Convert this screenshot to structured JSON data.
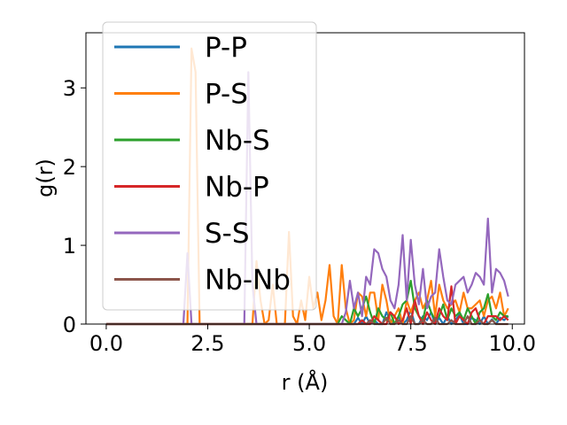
{
  "chart_data": {
    "type": "line",
    "xlabel": "r (Å)",
    "ylabel": "g(r)",
    "xlim": [
      -0.5,
      10.3
    ],
    "ylim": [
      0,
      3.7
    ],
    "xticks": [
      "0.0",
      "2.5",
      "5.0",
      "7.5",
      "10.0"
    ],
    "yticks": [
      "0",
      "1",
      "2",
      "3"
    ],
    "legend": "top-left",
    "grid": false,
    "x": [
      0.0,
      0.1,
      0.2,
      0.3,
      0.4,
      0.5,
      0.6,
      0.7,
      0.8,
      0.9,
      1.0,
      1.1,
      1.2,
      1.3,
      1.4,
      1.5,
      1.6,
      1.7,
      1.8,
      1.9,
      2.0,
      2.1,
      2.2,
      2.3,
      2.4,
      2.5,
      2.6,
      2.7,
      2.8,
      2.9,
      3.0,
      3.1,
      3.2,
      3.3,
      3.4,
      3.5,
      3.6,
      3.7,
      3.8,
      3.9,
      4.0,
      4.1,
      4.2,
      4.3,
      4.4,
      4.5,
      4.6,
      4.7,
      4.8,
      4.9,
      5.0,
      5.1,
      5.2,
      5.3,
      5.4,
      5.5,
      5.6,
      5.7,
      5.8,
      5.9,
      6.0,
      6.1,
      6.2,
      6.3,
      6.4,
      6.5,
      6.6,
      6.7,
      6.8,
      6.9,
      7.0,
      7.1,
      7.2,
      7.3,
      7.4,
      7.5,
      7.6,
      7.7,
      7.8,
      7.9,
      8.0,
      8.1,
      8.2,
      8.3,
      8.4,
      8.5,
      8.6,
      8.7,
      8.8,
      8.9,
      9.0,
      9.1,
      9.2,
      9.3,
      9.4,
      9.5,
      9.6,
      9.7,
      9.8,
      9.9
    ],
    "series": [
      {
        "name": "P-P",
        "color": "#1f77b4",
        "values": [
          0,
          0,
          0,
          0,
          0,
          0,
          0,
          0,
          0,
          0,
          0,
          0,
          0,
          0,
          0,
          0,
          0,
          0,
          0,
          0,
          0,
          0,
          0,
          0,
          0,
          0,
          0,
          0,
          0,
          0,
          0,
          0,
          0,
          0,
          0,
          0,
          0,
          0,
          0,
          0,
          0,
          0,
          0,
          0,
          0,
          0,
          0,
          0,
          0,
          0,
          0,
          0,
          0,
          0,
          0,
          0,
          0,
          0,
          0,
          0,
          0,
          0,
          0.08,
          0,
          0.1,
          0,
          0.05,
          0,
          0,
          0.15,
          0.05,
          0,
          0.1,
          0,
          0.05,
          0.18,
          0,
          0,
          0.1,
          0.05,
          0.15,
          0,
          0.08,
          0,
          0.1,
          0,
          0.05,
          0.12,
          0,
          0,
          0.08,
          0.05,
          0,
          0.1,
          0,
          0.06,
          0,
          0.08,
          0.05,
          0.1
        ]
      },
      {
        "name": "P-S",
        "color": "#ff7f0e",
        "values": [
          0,
          0,
          0,
          0,
          0,
          0,
          0,
          0,
          0,
          0,
          0,
          0,
          0,
          0,
          0,
          0,
          0,
          0,
          0,
          0,
          0,
          3.5,
          3.2,
          0,
          0,
          0,
          0,
          0,
          0,
          0,
          0,
          0,
          0,
          0,
          0,
          0,
          0,
          0.8,
          0.3,
          0,
          0.05,
          0.5,
          0,
          0,
          0,
          1.17,
          0.1,
          0,
          0.3,
          0.05,
          0.6,
          0.2,
          0.4,
          0.05,
          0.3,
          0.75,
          0.1,
          0,
          0.75,
          0.2,
          0,
          0.05,
          0.4,
          0.35,
          0.1,
          0.4,
          0.4,
          0.05,
          0.5,
          0.3,
          0,
          0.1,
          0.2,
          0,
          0.3,
          0.15,
          0.3,
          0.4,
          0.2,
          0.3,
          0.55,
          0.1,
          0.5,
          0.3,
          0.2,
          0.25,
          0.3,
          0.15,
          0.4,
          0.2,
          0.2,
          0.25,
          0.3,
          0.1,
          0.3,
          0.35,
          0.2,
          0.4,
          0.1,
          0.2
        ]
      },
      {
        "name": "Nb-S",
        "color": "#2ca02c",
        "values": [
          0,
          0,
          0,
          0,
          0,
          0,
          0,
          0,
          0,
          0,
          0,
          0,
          0,
          0,
          0,
          0,
          0,
          0,
          0,
          0,
          0,
          0,
          0,
          0,
          0,
          0,
          0,
          0,
          0,
          0,
          0,
          0,
          0,
          0,
          0,
          0,
          0,
          0,
          0,
          0,
          0,
          0,
          0,
          0,
          0,
          0,
          0,
          0,
          0,
          0,
          0,
          0,
          0,
          0,
          0,
          0,
          0,
          0,
          0.1,
          0.05,
          0,
          0.2,
          0.1,
          0.2,
          0.35,
          0.15,
          0,
          0.2,
          0.1,
          0.05,
          0.15,
          0,
          0.1,
          0.25,
          0.3,
          0.55,
          0.2,
          0.1,
          0.05,
          0.3,
          0.15,
          0.05,
          0.1,
          0.25,
          0.05,
          0.2,
          0.1,
          0.15,
          0.05,
          0.2,
          0.1,
          0,
          0.15,
          0.2,
          0.38,
          0.1,
          0.05,
          0.15,
          0.1,
          0.1
        ]
      },
      {
        "name": "Nb-P",
        "color": "#d62728",
        "values": [
          0,
          0,
          0,
          0,
          0,
          0,
          0,
          0,
          0,
          0,
          0,
          0,
          0,
          0,
          0,
          0,
          0,
          0,
          0,
          0,
          0,
          0,
          0,
          0,
          0,
          0,
          0,
          0,
          0,
          0,
          0,
          0,
          0,
          0,
          0,
          0,
          0,
          0,
          0,
          0,
          0,
          0,
          0,
          0,
          0,
          0,
          0,
          0,
          0,
          0,
          0,
          0,
          0,
          0,
          0,
          0,
          0,
          0,
          0,
          0,
          0,
          0,
          0,
          0.05,
          0,
          0,
          0.1,
          0.05,
          0,
          0,
          0.15,
          0.1,
          0,
          0.05,
          0.2,
          0,
          0.3,
          0.1,
          0,
          0.15,
          0.05,
          0,
          0.2,
          0.1,
          0.05,
          0.48,
          0,
          0.1,
          0.05,
          0,
          0.15,
          0.2,
          0.05,
          0,
          0.1,
          0.1,
          0.1,
          0.05,
          0.1,
          0.05
        ]
      },
      {
        "name": "S-S",
        "color": "#9467bd",
        "values": [
          0,
          0,
          0,
          0,
          0,
          0,
          0,
          0,
          0,
          0,
          0,
          0,
          0,
          0,
          0,
          0,
          0,
          0,
          0,
          0,
          0.9,
          0,
          0,
          0,
          0,
          0,
          0,
          0,
          0,
          0,
          0,
          0,
          0,
          0,
          0,
          3.2,
          0.5,
          0,
          0,
          0,
          0,
          0,
          0,
          0,
          0,
          0,
          0,
          0,
          0,
          0,
          0,
          0,
          0,
          0,
          0,
          0,
          0,
          0,
          0,
          0.15,
          0.55,
          0.2,
          0.4,
          0.1,
          0.6,
          0.5,
          0.95,
          0.9,
          0.7,
          0.6,
          0.3,
          0.2,
          0.5,
          1.13,
          0.3,
          1.07,
          0.5,
          0.25,
          0.7,
          0.2,
          0.35,
          0.4,
          0.95,
          0.6,
          0.3,
          0.25,
          0.5,
          0.55,
          0.6,
          0.4,
          0.5,
          0.65,
          0.6,
          0.5,
          1.34,
          0.4,
          0.7,
          0.65,
          0.55,
          0.35
        ]
      },
      {
        "name": "Nb-Nb",
        "color": "#8c564b",
        "values": [
          0,
          0,
          0,
          0,
          0,
          0,
          0,
          0,
          0,
          0,
          0,
          0,
          0,
          0,
          0,
          0,
          0,
          0,
          0,
          0,
          0,
          0,
          0,
          0,
          0,
          0,
          0,
          0,
          0,
          0,
          0,
          0,
          0,
          0,
          0,
          0,
          0,
          0,
          0,
          0,
          0,
          0,
          0,
          0,
          0,
          0,
          0,
          0,
          0,
          0,
          0,
          0,
          0,
          0,
          0,
          0,
          0,
          0,
          0,
          0,
          0,
          0,
          0,
          0,
          0,
          0.05,
          0,
          0,
          0,
          0.08,
          0,
          0,
          0.05,
          0,
          0,
          0.1,
          0,
          0,
          0.05,
          0,
          0,
          0.08,
          0,
          0,
          0,
          0.05,
          0,
          0,
          0,
          0.1,
          0,
          0,
          0.05,
          0,
          0,
          0.05,
          0,
          0,
          0,
          0
        ]
      }
    ]
  }
}
